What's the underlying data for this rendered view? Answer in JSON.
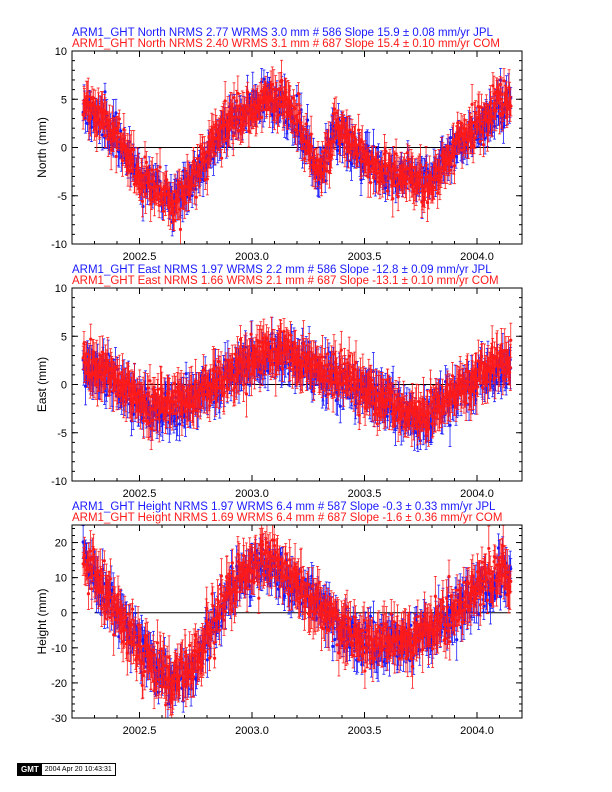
{
  "colors": {
    "jpl": "#1a1aff",
    "com": "#ff1a1a",
    "axis": "#000000"
  },
  "chart_data": [
    {
      "type": "scatter",
      "component": "North",
      "title_lines": [
        {
          "text": "ARM1_GHT North NRMS 2.77 WRMS  3.0 mm # 586 Slope   15.9 ±  0.08 mm/yr JPL",
          "color": "#1a1aff"
        },
        {
          "text": "ARM1_GHT North NRMS 2.40 WRMS  3.1 mm # 687 Slope   15.4 ±  0.10 mm/yr COM",
          "color": "#ff1a1a"
        }
      ],
      "ylabel": "North (mm)",
      "xlim": [
        2002.2,
        2004.2
      ],
      "ylim": [
        -10,
        10
      ],
      "xticks": [
        "2002.5",
        "2003.0",
        "2003.5",
        "2004.0"
      ],
      "yticks": [
        "-10",
        "-5",
        "0",
        "5",
        "10"
      ],
      "series": [
        {
          "name": "JPL",
          "color": "#1a1aff",
          "n": 586,
          "seed": 11,
          "offset": 0,
          "slope": 15.9,
          "noise": 0.9,
          "err": 1.3,
          "shape": [
            [
              2002.25,
              4.5
            ],
            [
              2002.35,
              2.5
            ],
            [
              2002.5,
              -3
            ],
            [
              2002.65,
              -5.5
            ],
            [
              2002.75,
              -3
            ],
            [
              2002.85,
              1
            ],
            [
              2002.95,
              3.5
            ],
            [
              2003.05,
              5
            ],
            [
              2003.15,
              4
            ],
            [
              2003.25,
              0
            ],
            [
              2003.3,
              -3
            ],
            [
              2003.37,
              2
            ],
            [
              2003.45,
              0
            ],
            [
              2003.55,
              -2
            ],
            [
              2003.7,
              -3
            ],
            [
              2003.8,
              -3
            ],
            [
              2003.9,
              0
            ],
            [
              2004.0,
              2
            ],
            [
              2004.1,
              4
            ],
            [
              2004.15,
              4.5
            ]
          ]
        },
        {
          "name": "COM",
          "color": "#ff1a1a",
          "n": 687,
          "seed": 23,
          "offset": 0.2,
          "slope": 15.4,
          "noise": 1.0,
          "err": 1.4,
          "shape": [
            [
              2002.25,
              4.5
            ],
            [
              2002.35,
              2.5
            ],
            [
              2002.5,
              -3
            ],
            [
              2002.65,
              -6
            ],
            [
              2002.75,
              -3
            ],
            [
              2002.85,
              1
            ],
            [
              2002.95,
              3.5
            ],
            [
              2003.05,
              5
            ],
            [
              2003.15,
              4.5
            ],
            [
              2003.25,
              0
            ],
            [
              2003.3,
              -3
            ],
            [
              2003.37,
              2
            ],
            [
              2003.45,
              0
            ],
            [
              2003.55,
              -2
            ],
            [
              2003.7,
              -3
            ],
            [
              2003.8,
              -4.5
            ],
            [
              2003.9,
              0
            ],
            [
              2004.0,
              2.5
            ],
            [
              2004.1,
              4.5
            ],
            [
              2004.15,
              4.5
            ]
          ]
        }
      ]
    },
    {
      "type": "scatter",
      "component": "East",
      "title_lines": [
        {
          "text": "ARM1_GHT East NRMS 1.97 WRMS  2.2 mm # 586 Slope  -12.8 ±  0.09 mm/yr JPL",
          "color": "#1a1aff"
        },
        {
          "text": "ARM1_GHT East NRMS 1.66 WRMS  2.1 mm # 687 Slope  -13.1 ±  0.10 mm/yr COM",
          "color": "#ff1a1a"
        }
      ],
      "ylabel": "East (mm)",
      "xlim": [
        2002.2,
        2004.2
      ],
      "ylim": [
        -10,
        10
      ],
      "xticks": [
        "2002.5",
        "2003.0",
        "2003.5",
        "2004.0"
      ],
      "yticks": [
        "-10",
        "-5",
        "0",
        "5",
        "10"
      ],
      "series": [
        {
          "name": "JPL",
          "color": "#1a1aff",
          "n": 586,
          "seed": 37,
          "offset": 0,
          "slope": -12.8,
          "noise": 1.0,
          "err": 1.5,
          "shape": [
            [
              2002.25,
              2
            ],
            [
              2002.4,
              0
            ],
            [
              2002.55,
              -3
            ],
            [
              2002.7,
              -2
            ],
            [
              2002.85,
              0
            ],
            [
              2003.0,
              2.5
            ],
            [
              2003.15,
              3
            ],
            [
              2003.3,
              1
            ],
            [
              2003.45,
              0
            ],
            [
              2003.6,
              -2
            ],
            [
              2003.75,
              -4
            ],
            [
              2003.85,
              -2
            ],
            [
              2003.95,
              0
            ],
            [
              2004.05,
              1
            ],
            [
              2004.15,
              2
            ]
          ]
        },
        {
          "name": "COM",
          "color": "#ff1a1a",
          "n": 687,
          "seed": 41,
          "offset": 0.2,
          "slope": -13.1,
          "noise": 1.0,
          "err": 1.6,
          "shape": [
            [
              2002.25,
              2.5
            ],
            [
              2002.4,
              0
            ],
            [
              2002.55,
              -2.5
            ],
            [
              2002.7,
              -2
            ],
            [
              2002.85,
              0
            ],
            [
              2003.0,
              2.5
            ],
            [
              2003.15,
              3.5
            ],
            [
              2003.3,
              1
            ],
            [
              2003.45,
              0
            ],
            [
              2003.6,
              -2
            ],
            [
              2003.75,
              -3.5
            ],
            [
              2003.85,
              -2
            ],
            [
              2003.95,
              0
            ],
            [
              2004.05,
              1.5
            ],
            [
              2004.15,
              2.5
            ]
          ]
        }
      ]
    },
    {
      "type": "scatter",
      "component": "Height",
      "title_lines": [
        {
          "text": "ARM1_GHT Height NRMS 1.97 WRMS  6.4 mm # 587 Slope   -0.3 ±  0.33 mm/yr JPL",
          "color": "#1a1aff"
        },
        {
          "text": "ARM1_GHT Height NRMS 1.69 WRMS  6.4 mm # 687 Slope   -1.6 ±  0.36 mm/yr COM",
          "color": "#ff1a1a"
        }
      ],
      "ylabel": "Height (mm)",
      "xlim": [
        2002.2,
        2004.2
      ],
      "ylim": [
        -30,
        25
      ],
      "xticks": [
        "2002.5",
        "2003.0",
        "2003.5",
        "2004.0"
      ],
      "yticks": [
        "-30",
        "-20",
        "-10",
        "0",
        "10",
        "20"
      ],
      "series": [
        {
          "name": "JPL",
          "color": "#1a1aff",
          "n": 587,
          "seed": 53,
          "offset": 0,
          "slope": -0.3,
          "noise": 3.0,
          "err": 4.0,
          "shape": [
            [
              2002.25,
              15
            ],
            [
              2002.35,
              5
            ],
            [
              2002.5,
              -10
            ],
            [
              2002.65,
              -20
            ],
            [
              2002.75,
              -15
            ],
            [
              2002.85,
              0
            ],
            [
              2002.95,
              10
            ],
            [
              2003.05,
              15
            ],
            [
              2003.15,
              10
            ],
            [
              2003.25,
              5
            ],
            [
              2003.4,
              -5
            ],
            [
              2003.55,
              -10
            ],
            [
              2003.7,
              -8
            ],
            [
              2003.8,
              -5
            ],
            [
              2003.9,
              0
            ],
            [
              2004.0,
              5
            ],
            [
              2004.1,
              10
            ],
            [
              2004.15,
              8
            ]
          ]
        },
        {
          "name": "COM",
          "color": "#ff1a1a",
          "n": 687,
          "seed": 67,
          "offset": 0.5,
          "slope": -1.6,
          "noise": 3.2,
          "err": 4.5,
          "shape": [
            [
              2002.25,
              15
            ],
            [
              2002.35,
              5
            ],
            [
              2002.5,
              -10
            ],
            [
              2002.65,
              -22
            ],
            [
              2002.75,
              -15
            ],
            [
              2002.85,
              0
            ],
            [
              2002.95,
              10
            ],
            [
              2003.05,
              15
            ],
            [
              2003.15,
              12
            ],
            [
              2003.25,
              5
            ],
            [
              2003.4,
              -5
            ],
            [
              2003.55,
              -10
            ],
            [
              2003.7,
              -8
            ],
            [
              2003.8,
              -5
            ],
            [
              2003.9,
              0
            ],
            [
              2004.0,
              6
            ],
            [
              2004.1,
              12
            ],
            [
              2004.15,
              8
            ]
          ]
        }
      ]
    }
  ],
  "footer": {
    "logo": "GMT",
    "timestamp": "2004 Apr 20 10:43:31"
  }
}
